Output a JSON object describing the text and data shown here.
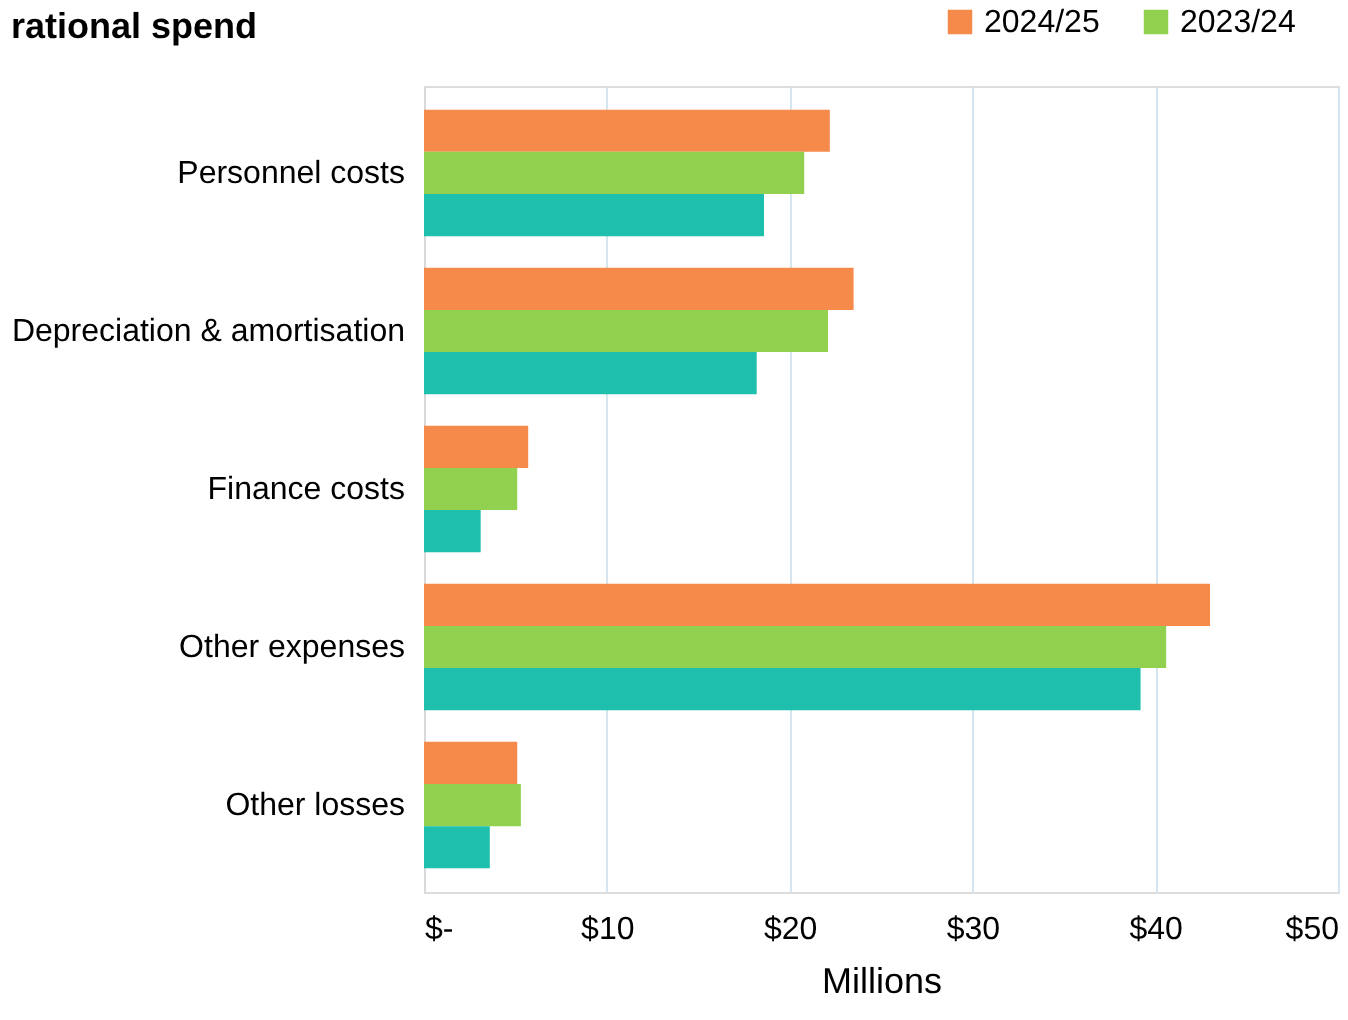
{
  "chart_data": {
    "type": "bar",
    "orientation": "horizontal",
    "title": "rational spend",
    "xlabel": "Millions",
    "categories": [
      "Personnel costs",
      "Depreciation & amortisation",
      "Finance costs",
      "Other expenses",
      "Other losses"
    ],
    "series": [
      {
        "name": "2024/25",
        "color": "#f58a4b",
        "values": [
          22.2,
          23.5,
          5.7,
          43.0,
          5.1
        ]
      },
      {
        "name": "2023/24",
        "color": "#92d050",
        "values": [
          20.8,
          22.1,
          5.1,
          40.6,
          5.3
        ]
      },
      {
        "color": "#1fbfad",
        "values": [
          18.6,
          18.2,
          3.1,
          39.2,
          3.6
        ]
      }
    ],
    "xlim": [
      0,
      50
    ],
    "xticks": [
      {
        "value": 0,
        "label": "$-"
      },
      {
        "value": 10,
        "label": "$10"
      },
      {
        "value": 20,
        "label": "$20"
      },
      {
        "value": 30,
        "label": "$30"
      },
      {
        "value": 40,
        "label": "$40"
      },
      {
        "value": 50,
        "label": "$50"
      }
    ],
    "grid": "x",
    "legend": "top right"
  }
}
